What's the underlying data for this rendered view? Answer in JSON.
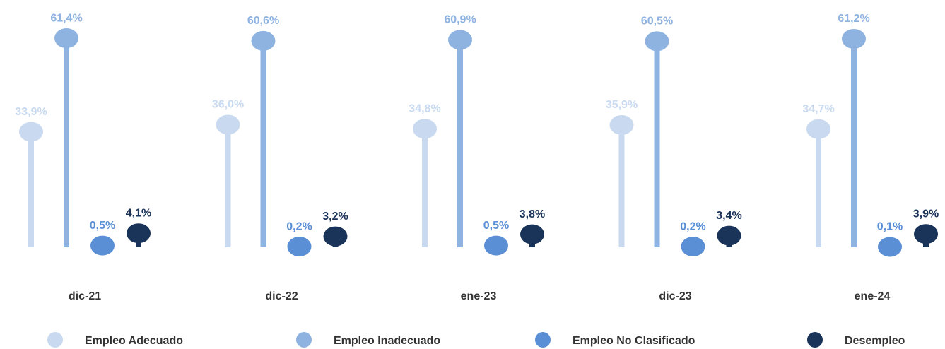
{
  "chart_data": {
    "type": "lollipop",
    "categories": [
      "dic-21",
      "dic-22",
      "ene-23",
      "dic-23",
      "ene-24"
    ],
    "series": [
      {
        "name": "Empleo Adecuado",
        "color": "#c9daf0",
        "values": [
          33.9,
          36.0,
          34.8,
          35.9,
          34.7
        ],
        "value_labels": [
          "33,9%",
          "36,0%",
          "34,8%",
          "35,9%",
          "34,7%"
        ]
      },
      {
        "name": "Empleo Inadecuado",
        "color": "#8fb3e0",
        "values": [
          61.4,
          60.6,
          60.9,
          60.5,
          61.2
        ],
        "value_labels": [
          "61,4%",
          "60,6%",
          "60,9%",
          "60,5%",
          "61,2%"
        ]
      },
      {
        "name": "Empleo No Clasificado",
        "color": "#5a8fd6",
        "values": [
          0.5,
          0.2,
          0.5,
          0.2,
          0.1
        ],
        "value_labels": [
          "0,5%",
          "0,2%",
          "0,5%",
          "0,2%",
          "0,1%"
        ]
      },
      {
        "name": "Desempleo",
        "color": "#1a3358",
        "values": [
          4.1,
          3.2,
          3.8,
          3.4,
          3.9
        ],
        "value_labels": [
          "4,1%",
          "3,2%",
          "3,8%",
          "3,4%",
          "3,9%"
        ]
      }
    ]
  }
}
